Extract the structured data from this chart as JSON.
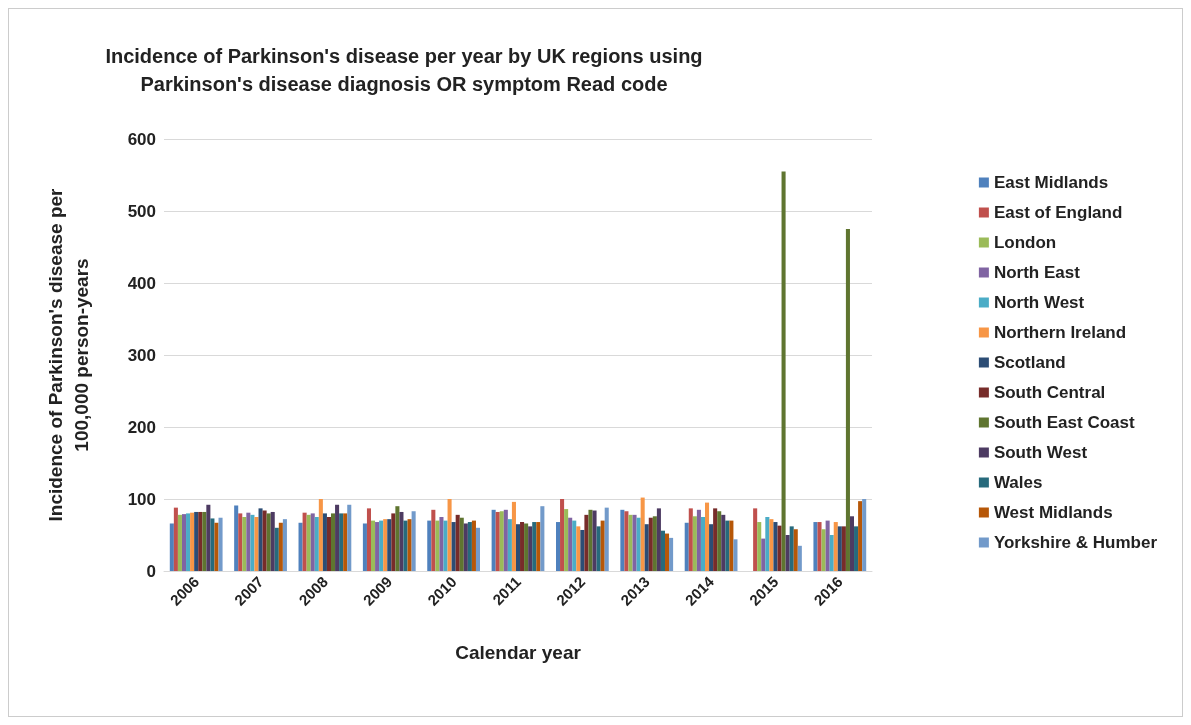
{
  "chart_data": {
    "type": "bar",
    "title": "Incidence of Parkinson's disease per year by UK regions using\nParkinson's disease diagnosis OR symptom Read code",
    "xlabel": "Calendar year",
    "ylabel": "Incidence of Parkinson's disease per\n100,000 person-years",
    "categories": [
      "2006",
      "2007",
      "2008",
      "2009",
      "2010",
      "2011",
      "2012",
      "2013",
      "2014",
      "2015",
      "2016"
    ],
    "ylim": [
      0,
      600
    ],
    "yticks": [
      0,
      100,
      200,
      300,
      400,
      500,
      600
    ],
    "grid": "y",
    "legend": "right",
    "series": [
      {
        "name": "East Midlands",
        "color": "#4f81bd",
        "values": [
          66,
          91,
          67,
          66,
          70,
          85,
          68,
          85,
          67,
          null,
          68
        ]
      },
      {
        "name": "East of England",
        "color": "#c0504d",
        "values": [
          88,
          80,
          81,
          87,
          85,
          82,
          100,
          83,
          87,
          87,
          68
        ]
      },
      {
        "name": "London",
        "color": "#9bbb59",
        "values": [
          78,
          75,
          78,
          70,
          70,
          83,
          86,
          78,
          76,
          68,
          58
        ]
      },
      {
        "name": "North East",
        "color": "#8064a2",
        "values": [
          79,
          81,
          80,
          68,
          75,
          85,
          74,
          78,
          85,
          45,
          70
        ]
      },
      {
        "name": "North West",
        "color": "#4bacc6",
        "values": [
          80,
          78,
          75,
          70,
          70,
          72,
          70,
          74,
          75,
          75,
          50
        ]
      },
      {
        "name": "Northern Ireland",
        "color": "#f79646",
        "values": [
          81,
          75,
          100,
          72,
          100,
          96,
          62,
          102,
          95,
          72,
          68
        ]
      },
      {
        "name": "Scotland",
        "color": "#2c4d75",
        "values": [
          82,
          87,
          80,
          72,
          68,
          65,
          57,
          65,
          65,
          68,
          62
        ]
      },
      {
        "name": "South Central",
        "color": "#772c2a",
        "values": [
          82,
          84,
          75,
          80,
          78,
          68,
          78,
          74,
          87,
          63,
          62
        ]
      },
      {
        "name": "South East Coast",
        "color": "#5f7530",
        "values": [
          82,
          80,
          80,
          90,
          74,
          66,
          85,
          76,
          83,
          555,
          475
        ]
      },
      {
        "name": "South West",
        "color": "#4d3b62",
        "values": [
          92,
          82,
          92,
          82,
          66,
          62,
          84,
          87,
          78,
          50,
          76
        ]
      },
      {
        "name": "Wales",
        "color": "#276a7c",
        "values": [
          73,
          60,
          80,
          70,
          68,
          68,
          62,
          56,
          70,
          62,
          62
        ]
      },
      {
        "name": "West Midlands",
        "color": "#b65708",
        "values": [
          67,
          67,
          80,
          72,
          70,
          68,
          70,
          52,
          70,
          58,
          97
        ]
      },
      {
        "name": "Yorkshire & Humber",
        "color": "#729aca",
        "values": [
          74,
          72,
          92,
          83,
          60,
          90,
          88,
          46,
          44,
          35,
          100
        ]
      }
    ]
  }
}
